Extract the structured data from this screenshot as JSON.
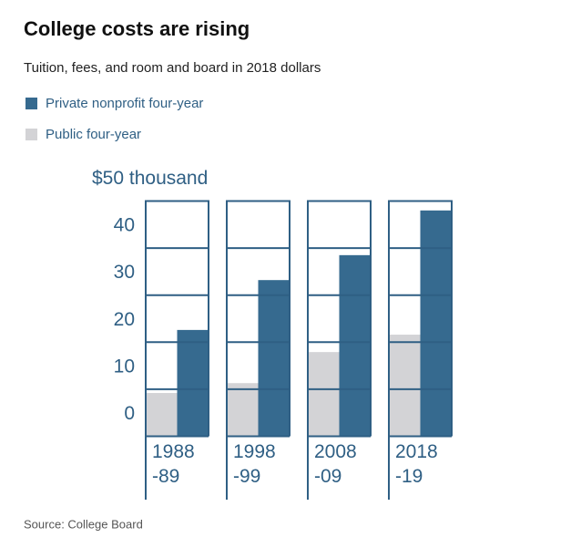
{
  "chart_data": {
    "type": "bar",
    "title": "College costs are rising",
    "subtitle": "Tuition, fees, and room and board in 2018 dollars",
    "source": "Source: College Board",
    "categories": [
      "1988-89",
      "1998-99",
      "2008-09",
      "2018-19"
    ],
    "series": [
      {
        "name": "Private nonprofit four-year",
        "color": "#366a8f",
        "values": [
          22.6,
          33.2,
          38.5,
          48.0
        ]
      },
      {
        "name": "Public four-year",
        "color": "#d3d3d6",
        "values": [
          9.2,
          11.3,
          17.9,
          21.6
        ]
      }
    ],
    "ylim": [
      0,
      50
    ],
    "yticks": [
      0,
      10,
      20,
      30,
      40,
      {
        "value": 50,
        "label": "$50 thousand"
      }
    ],
    "grid": true
  }
}
